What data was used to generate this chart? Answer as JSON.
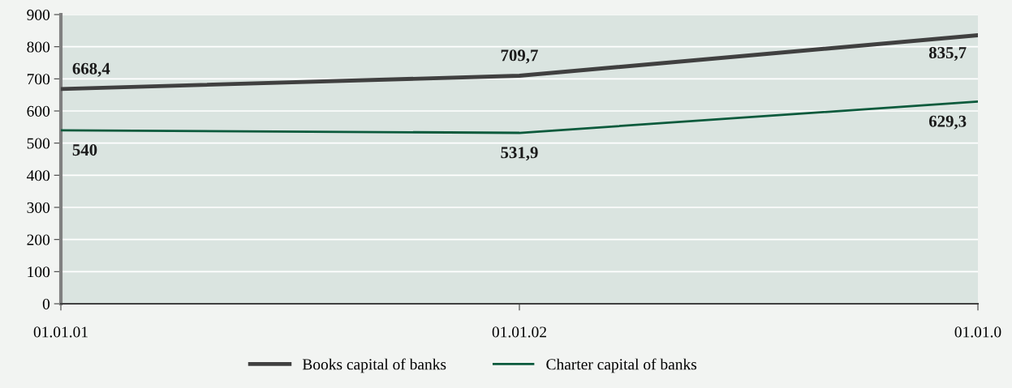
{
  "chart_data": {
    "type": "line",
    "categories": [
      "01.01.01",
      "01.01.02",
      "01.01.0"
    ],
    "series": [
      {
        "name": "Books capital of banks",
        "color": "#404040",
        "values": [
          668.4,
          709.7,
          835.7
        ],
        "value_labels": [
          "668,4",
          "709,7",
          "835,7"
        ]
      },
      {
        "name": "Charter capital of banks",
        "color": "#0b5a3c",
        "values": [
          540,
          531.9,
          629.3
        ],
        "value_labels": [
          "540",
          "531,9",
          "629,3"
        ]
      }
    ],
    "ylim": [
      0,
      900
    ],
    "yticks": [
      0,
      100,
      200,
      300,
      400,
      500,
      600,
      700,
      800,
      900
    ],
    "grid": "y",
    "legend": "bottom",
    "marker": "none",
    "line_style": "solid"
  }
}
